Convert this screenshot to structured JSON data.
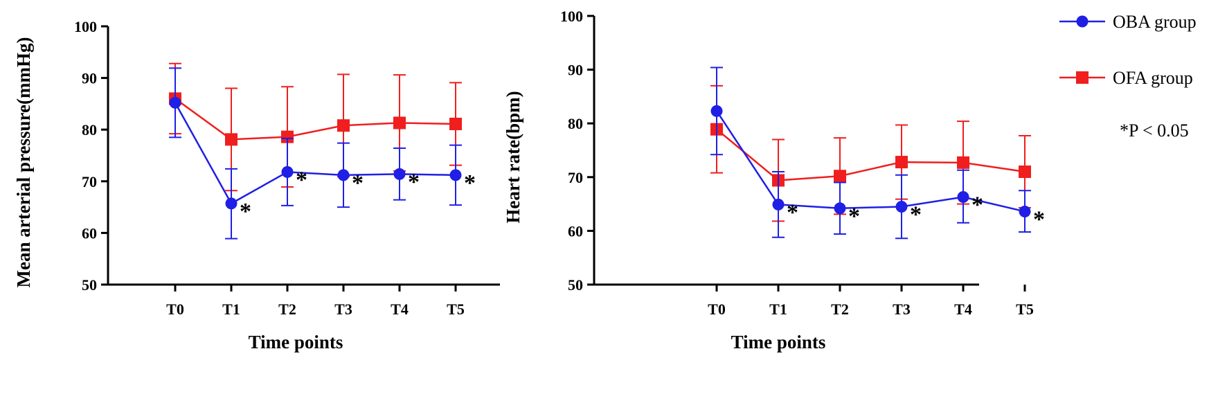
{
  "chart_data": [
    {
      "type": "line",
      "xlabel": "Time points",
      "ylabel": "Mean arterial pressure(mmHg)",
      "categories": [
        "T0",
        "T1",
        "T2",
        "T3",
        "T4",
        "T5"
      ],
      "ylim": [
        50,
        100
      ],
      "yticks": [
        "50",
        "60",
        "70",
        "80",
        "90",
        "100"
      ],
      "series": [
        {
          "name": "OBA group",
          "color": "#1f1fe6",
          "marker": "circle",
          "values": [
            85.2,
            65.7,
            71.8,
            71.2,
            71.4,
            71.2
          ],
          "error_upper": [
            91.9,
            72.4,
            78.3,
            77.4,
            76.4,
            77.0
          ],
          "error_lower": [
            78.5,
            58.9,
            65.3,
            65.0,
            66.4,
            65.4
          ]
        },
        {
          "name": "OFA group",
          "color": "#f01e1e",
          "marker": "square",
          "values": [
            86.0,
            78.1,
            78.6,
            80.8,
            81.3,
            81.1
          ],
          "error_upper": [
            92.8,
            88.0,
            88.3,
            90.7,
            90.6,
            89.1
          ],
          "error_lower": [
            79.2,
            68.2,
            68.9,
            70.9,
            72.0,
            73.1
          ]
        }
      ],
      "annotations": {
        "symbol": "*",
        "categories": [
          "T1",
          "T2",
          "T3",
          "T4",
          "T5"
        ]
      }
    },
    {
      "type": "line",
      "xlabel": "Time points",
      "ylabel": "Heart rate(bpm)",
      "categories": [
        "T0",
        "T1",
        "T2",
        "T3",
        "T4",
        "T5"
      ],
      "ylim": [
        50,
        100
      ],
      "yticks": [
        "50",
        "60",
        "70",
        "80",
        "90",
        "100"
      ],
      "series": [
        {
          "name": "OBA group",
          "color": "#1f1fe6",
          "marker": "circle",
          "values": [
            82.3,
            64.9,
            64.2,
            64.5,
            66.3,
            63.6
          ],
          "error_upper": [
            90.4,
            71.0,
            69.0,
            70.4,
            71.3,
            67.5
          ],
          "error_lower": [
            74.2,
            58.8,
            59.4,
            58.6,
            61.5,
            59.8
          ]
        },
        {
          "name": "OFA group",
          "color": "#f01e1e",
          "marker": "square",
          "values": [
            78.9,
            69.4,
            70.2,
            72.8,
            72.7,
            71.0
          ],
          "error_upper": [
            87.0,
            77.0,
            77.3,
            79.7,
            80.4,
            77.7
          ],
          "error_lower": [
            70.8,
            61.8,
            63.1,
            65.9,
            65.0,
            64.3
          ]
        }
      ],
      "annotations": {
        "symbol": "*",
        "categories": [
          "T1",
          "T2",
          "T3",
          "T4",
          "T5"
        ]
      }
    }
  ],
  "legend": {
    "placement": "top-right",
    "items": [
      {
        "label": "OBA group",
        "color": "#1f1fe6",
        "marker": "circle"
      },
      {
        "label": "OFA group",
        "color": "#f01e1e",
        "marker": "square"
      }
    ],
    "note": "*P < 0.05"
  }
}
